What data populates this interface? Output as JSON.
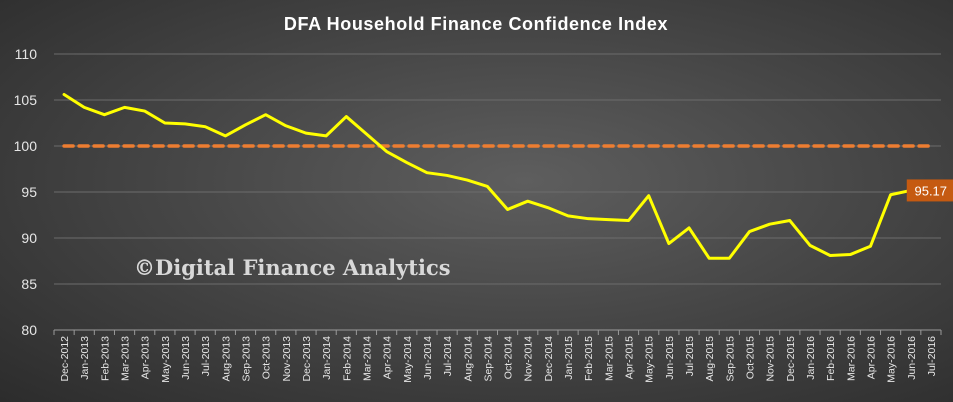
{
  "chart_data": {
    "type": "line",
    "title": "DFA Household Finance Confidence Index",
    "watermark": "©Digital Finance Analytics",
    "categories": [
      "Dec-2012",
      "Jan-2013",
      "Feb-2013",
      "Mar-2013",
      "Apr-2013",
      "May-2013",
      "Jun-2013",
      "Jul-2013",
      "Aug-2013",
      "Sep-2013",
      "Oct-2013",
      "Nov-2013",
      "Dec-2013",
      "Jan-2014",
      "Feb-2014",
      "Mar-2014",
      "Apr-2014",
      "May-2014",
      "Jun-2014",
      "Jul-2014",
      "Aug-2014",
      "Sep-2014",
      "Oct-2014",
      "Nov-2014",
      "Dec-2014",
      "Jan-2015",
      "Feb-2015",
      "Mar-2015",
      "Apr-2015",
      "May-2015",
      "Jun-2015",
      "Jul-2015",
      "Aug-2015",
      "Sep-2015",
      "Oct-2015",
      "Nov-2015",
      "Dec-2015",
      "Jan-2016",
      "Feb-2016",
      "Mar-2016",
      "Apr-2016",
      "May-2016",
      "Jun-2016",
      "Jul-2016"
    ],
    "series": [
      {
        "color": "#ffff00",
        "values": [
          105.6,
          104.2,
          103.4,
          104.2,
          103.8,
          102.5,
          102.4,
          102.1,
          101.1,
          102.3,
          103.4,
          102.2,
          101.4,
          101.1,
          103.2,
          101.3,
          99.4,
          98.2,
          97.1,
          96.8,
          96.3,
          95.6,
          93.1,
          94.0,
          93.3,
          92.4,
          92.1,
          92.0,
          91.9,
          94.6,
          89.4,
          91.1,
          87.8,
          87.8,
          90.7,
          91.5,
          91.9,
          89.2,
          88.1,
          88.2,
          89.1,
          94.7,
          95.17,
          null
        ]
      }
    ],
    "reference_line": {
      "value": 100,
      "color": "#ed7d31",
      "style": "dashed"
    },
    "last_value_label": "95.17",
    "label_color": "#c55a11",
    "yticks": [
      80,
      85,
      90,
      95,
      100,
      105,
      110
    ],
    "ylim": [
      80,
      110
    ],
    "grid": true,
    "legend": "none"
  }
}
